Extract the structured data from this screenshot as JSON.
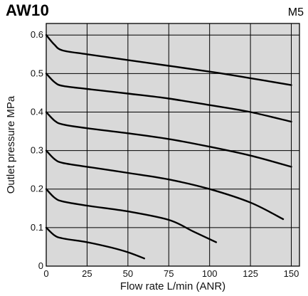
{
  "header": {
    "title": "AW10",
    "port_size": "M5"
  },
  "chart_data": {
    "type": "line",
    "title": "AW10",
    "subtitle": "M5",
    "xlabel": "Flow rate  L/min (ANR)",
    "ylabel": "Outlet pressure  MPa",
    "xlim": [
      0,
      155
    ],
    "ylim": [
      0,
      0.63
    ],
    "x_ticks": [
      0,
      25,
      50,
      75,
      100,
      125,
      150
    ],
    "y_ticks": [
      0,
      0.1,
      0.2,
      0.3,
      0.4,
      0.5,
      0.6
    ],
    "x_tick_labels": [
      "0",
      "25",
      "50",
      "75",
      "100",
      "125",
      "150"
    ],
    "y_tick_labels": [
      "0",
      "0.1",
      "0.2",
      "0.3",
      "0.4",
      "0.5",
      "0.6"
    ],
    "grid": true,
    "background_color": "#d9d9d9",
    "line_color": "#000000",
    "series": [
      {
        "x": [
          0,
          5,
          10,
          25,
          50,
          75,
          100,
          125,
          150
        ],
        "y": [
          0.6,
          0.575,
          0.56,
          0.55,
          0.535,
          0.52,
          0.505,
          0.488,
          0.47
        ]
      },
      {
        "x": [
          0,
          5,
          10,
          25,
          50,
          75,
          100,
          125,
          150
        ],
        "y": [
          0.5,
          0.478,
          0.468,
          0.46,
          0.448,
          0.435,
          0.418,
          0.4,
          0.375
        ]
      },
      {
        "x": [
          0,
          5,
          10,
          25,
          50,
          75,
          100,
          125,
          150
        ],
        "y": [
          0.4,
          0.378,
          0.368,
          0.358,
          0.345,
          0.33,
          0.31,
          0.287,
          0.258
        ]
      },
      {
        "x": [
          0,
          5,
          10,
          25,
          50,
          75,
          100,
          125,
          145
        ],
        "y": [
          0.3,
          0.278,
          0.268,
          0.258,
          0.242,
          0.225,
          0.2,
          0.165,
          0.122
        ]
      },
      {
        "x": [
          0,
          5,
          10,
          25,
          50,
          75,
          90,
          104
        ],
        "y": [
          0.2,
          0.178,
          0.168,
          0.157,
          0.142,
          0.12,
          0.09,
          0.062
        ]
      },
      {
        "x": [
          0,
          5,
          10,
          25,
          40,
          50,
          60
        ],
        "y": [
          0.1,
          0.08,
          0.072,
          0.062,
          0.048,
          0.036,
          0.02
        ]
      }
    ]
  }
}
